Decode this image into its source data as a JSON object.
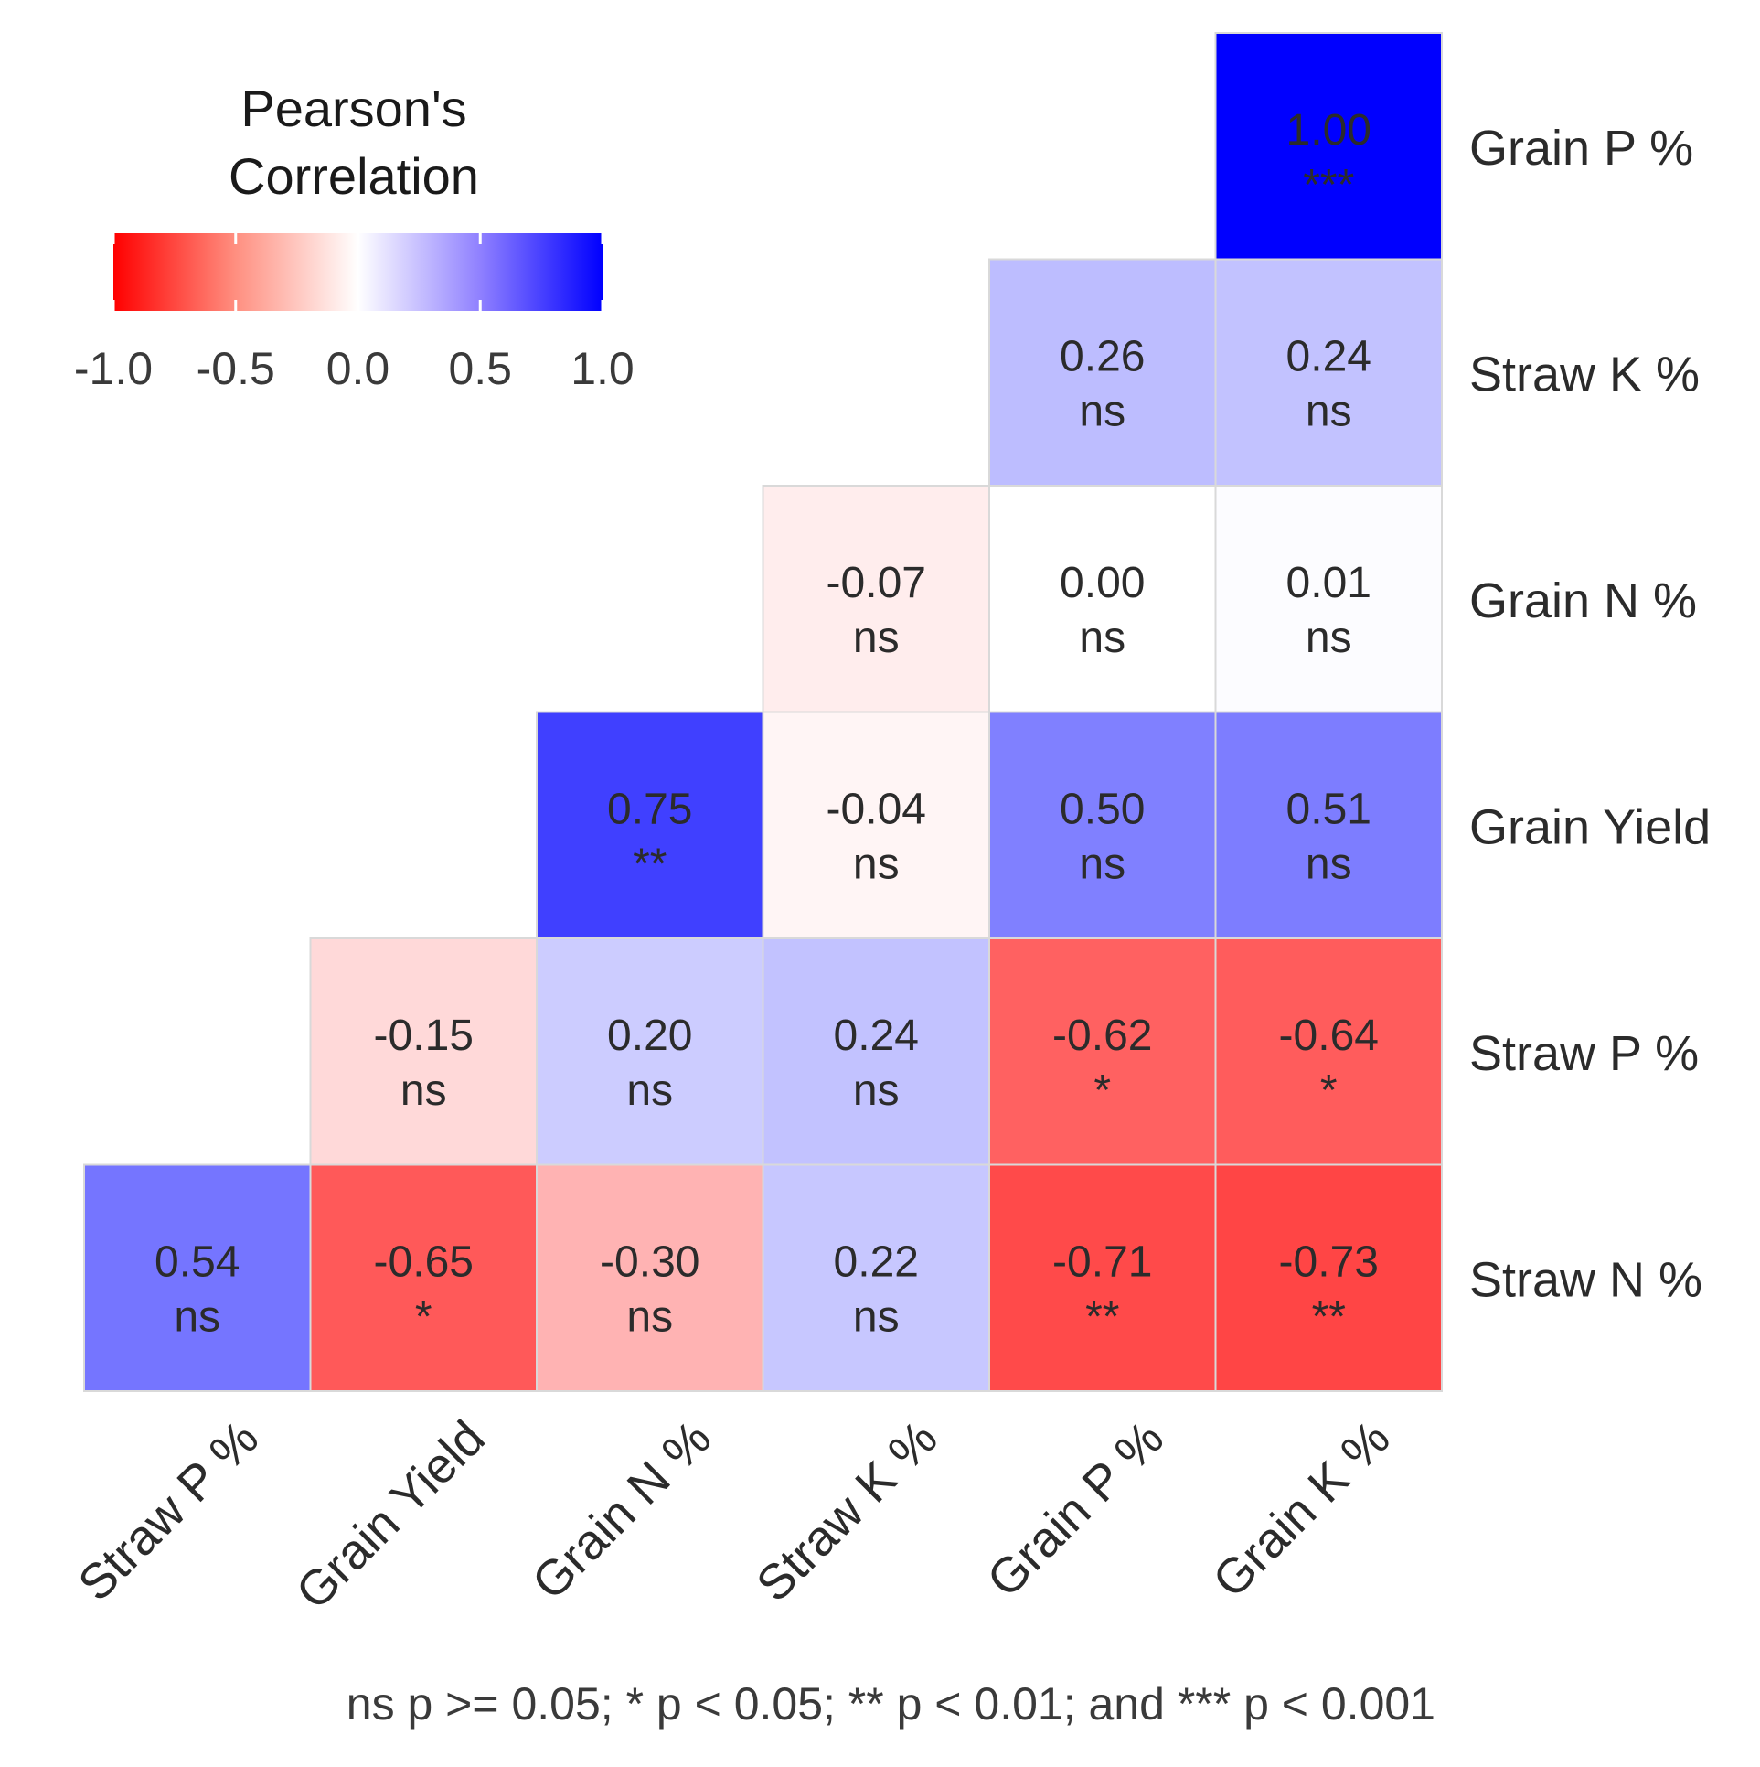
{
  "chart_data": {
    "type": "heatmap",
    "legend": {
      "title_lines": [
        "Pearson's",
        "Correlation"
      ],
      "ticks": [
        -1.0,
        -0.5,
        0.0,
        0.5,
        1.0
      ],
      "tick_labels": [
        "-1.0",
        "-0.5",
        "0.0",
        "0.5",
        "1.0"
      ],
      "range": [
        -1.0,
        1.0
      ],
      "low_color": "#ff0000",
      "mid_color": "#ffffff",
      "high_color": "#0000ff",
      "placement": "top-left"
    },
    "x_categories": [
      "Straw P %",
      "Grain Yield",
      "Grain N %",
      "Straw K %",
      "Grain P %",
      "Grain K %"
    ],
    "y_categories": [
      "Grain P %",
      "Straw K %",
      "Grain N %",
      "Grain Yield",
      "Straw P %",
      "Straw N %"
    ],
    "cells": [
      {
        "row": "Grain P %",
        "col": "Grain K %",
        "value": 1.0,
        "label": "1.00",
        "sig": "***"
      },
      {
        "row": "Straw K %",
        "col": "Grain P %",
        "value": 0.26,
        "label": "0.26",
        "sig": "ns"
      },
      {
        "row": "Straw K %",
        "col": "Grain K %",
        "value": 0.24,
        "label": "0.24",
        "sig": "ns"
      },
      {
        "row": "Grain N %",
        "col": "Straw K %",
        "value": -0.07,
        "label": "-0.07",
        "sig": "ns"
      },
      {
        "row": "Grain N %",
        "col": "Grain P %",
        "value": 0.0,
        "label": "0.00",
        "sig": "ns"
      },
      {
        "row": "Grain N %",
        "col": "Grain K %",
        "value": 0.01,
        "label": "0.01",
        "sig": "ns"
      },
      {
        "row": "Grain Yield",
        "col": "Grain N %",
        "value": 0.75,
        "label": "0.75",
        "sig": "**"
      },
      {
        "row": "Grain Yield",
        "col": "Straw K %",
        "value": -0.04,
        "label": "-0.04",
        "sig": "ns"
      },
      {
        "row": "Grain Yield",
        "col": "Grain P %",
        "value": 0.5,
        "label": "0.50",
        "sig": "ns"
      },
      {
        "row": "Grain Yield",
        "col": "Grain K %",
        "value": 0.51,
        "label": "0.51",
        "sig": "ns"
      },
      {
        "row": "Straw P %",
        "col": "Grain Yield",
        "value": -0.15,
        "label": "-0.15",
        "sig": "ns"
      },
      {
        "row": "Straw P %",
        "col": "Grain N %",
        "value": 0.2,
        "label": "0.20",
        "sig": "ns"
      },
      {
        "row": "Straw P %",
        "col": "Straw K %",
        "value": 0.24,
        "label": "0.24",
        "sig": "ns"
      },
      {
        "row": "Straw P %",
        "col": "Grain P %",
        "value": -0.62,
        "label": "-0.62",
        "sig": "*"
      },
      {
        "row": "Straw P %",
        "col": "Grain K %",
        "value": -0.64,
        "label": "-0.64",
        "sig": "*"
      },
      {
        "row": "Straw N %",
        "col": "Straw P %",
        "value": 0.54,
        "label": "0.54",
        "sig": "ns"
      },
      {
        "row": "Straw N %",
        "col": "Grain Yield",
        "value": -0.65,
        "label": "-0.65",
        "sig": "*"
      },
      {
        "row": "Straw N %",
        "col": "Grain N %",
        "value": -0.3,
        "label": "-0.30",
        "sig": "ns"
      },
      {
        "row": "Straw N %",
        "col": "Straw K %",
        "value": 0.22,
        "label": "0.22",
        "sig": "ns"
      },
      {
        "row": "Straw N %",
        "col": "Grain P %",
        "value": -0.71,
        "label": "-0.71",
        "sig": "**"
      },
      {
        "row": "Straw N %",
        "col": "Grain K %",
        "value": -0.73,
        "label": "-0.73",
        "sig": "**"
      }
    ],
    "footnote": "ns p >= 0.05; * p < 0.05; ** p < 0.01; and *** p < 0.001"
  }
}
